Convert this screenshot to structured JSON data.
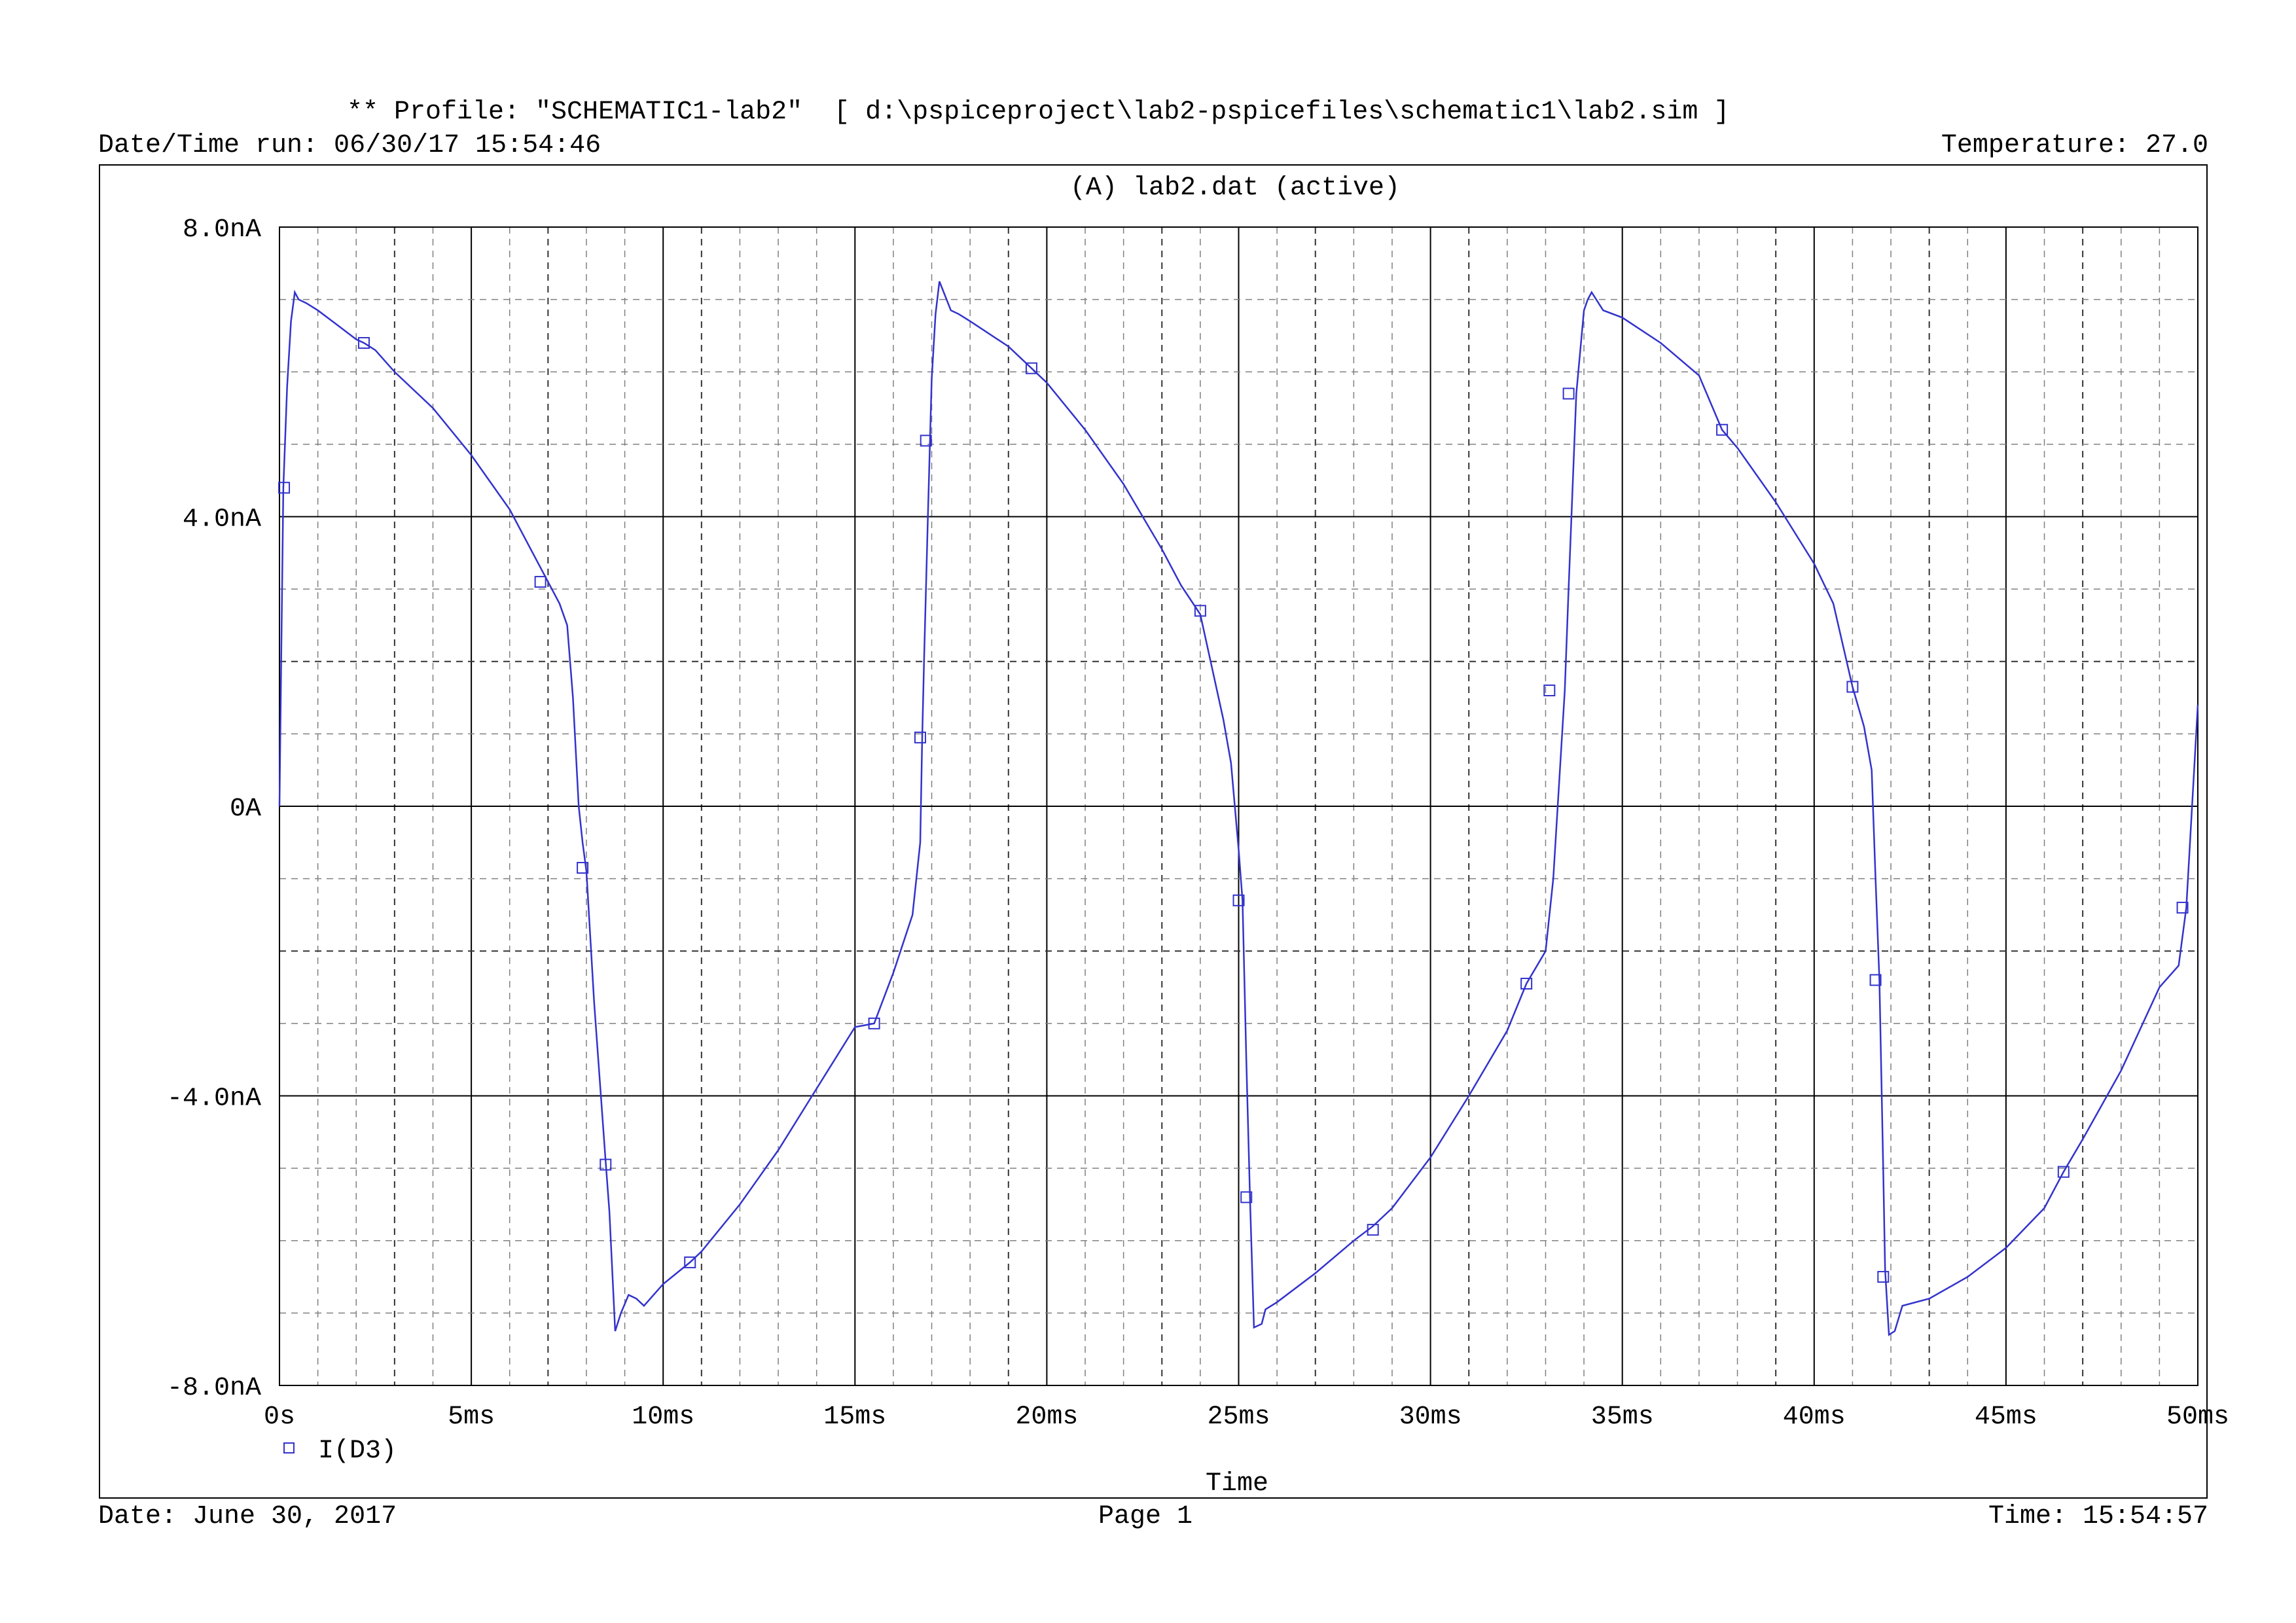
{
  "header": {
    "profile_line": "** Profile: \"SCHEMATIC1-lab2\"  [ d:\\pspiceproject\\lab2-pspicefiles\\schematic1\\lab2.sim ]",
    "datetime_run": "Date/Time run: 06/30/17 15:54:46",
    "temperature": "Temperature: 27.0"
  },
  "footer": {
    "date": "Date: June 30, 2017",
    "page": "Page 1",
    "time": "Time: 15:54:57"
  },
  "colors": {
    "trace": "#3333cc",
    "grid": "#808080",
    "frame": "#000000"
  },
  "chart_data": {
    "type": "line",
    "title": "(A) lab2.dat (active)",
    "xlabel": "Time",
    "ylabel": "",
    "xlim": [
      0,
      50
    ],
    "ylim": [
      -8,
      8
    ],
    "x_unit": "ms",
    "y_unit": "nA",
    "grid": true,
    "legend_position": "bottom-left",
    "x_ticks": [
      {
        "value": 0,
        "label": "0s"
      },
      {
        "value": 5,
        "label": "5ms"
      },
      {
        "value": 10,
        "label": "10ms"
      },
      {
        "value": 15,
        "label": "15ms"
      },
      {
        "value": 20,
        "label": "20ms"
      },
      {
        "value": 25,
        "label": "25ms"
      },
      {
        "value": 30,
        "label": "30ms"
      },
      {
        "value": 35,
        "label": "35ms"
      },
      {
        "value": 40,
        "label": "40ms"
      },
      {
        "value": 45,
        "label": "45ms"
      },
      {
        "value": 50,
        "label": "50ms"
      }
    ],
    "y_ticks": [
      {
        "value": 8,
        "label": "8.0nA"
      },
      {
        "value": 4,
        "label": "4.0nA"
      },
      {
        "value": 0,
        "label": "0A"
      },
      {
        "value": -4,
        "label": "-4.0nA"
      },
      {
        "value": -8,
        "label": "-8.0nA"
      }
    ],
    "series": [
      {
        "name": "I(D3)",
        "color": "#3333cc",
        "marker": "square",
        "x": [
          0,
          0.05,
          0.1,
          0.2,
          0.3,
          0.4,
          0.5,
          0.7,
          1.0,
          1.5,
          2.0,
          2.2,
          2.5,
          3.0,
          4.0,
          5.0,
          6.0,
          6.8,
          7.0,
          7.3,
          7.5,
          7.65,
          7.8,
          7.9,
          8.0,
          8.2,
          8.5,
          8.6,
          8.75,
          8.9,
          9.1,
          9.3,
          9.5,
          10.0,
          10.7,
          11.0,
          12.0,
          13.0,
          14.0,
          15.0,
          15.5,
          16.0,
          16.5,
          16.7,
          16.75,
          16.8,
          16.9,
          17.0,
          17.1,
          17.2,
          17.5,
          17.7,
          18.0,
          19.0,
          19.6,
          20.0,
          21.0,
          22.0,
          23.0,
          23.5,
          24.0,
          24.6,
          24.8,
          25.0,
          25.1,
          25.2,
          25.3,
          25.4,
          25.6,
          25.7,
          26.0,
          27.0,
          28.0,
          28.5,
          29.0,
          30.0,
          31.0,
          32.0,
          32.5,
          33.0,
          33.2,
          33.5,
          33.6,
          33.8,
          34.0,
          34.1,
          34.2,
          34.5,
          35.0,
          36.0,
          37.0,
          37.6,
          38.0,
          39.0,
          40.0,
          40.5,
          41.0,
          41.3,
          41.5,
          41.6,
          41.7,
          41.8,
          41.85,
          41.95,
          42.1,
          42.3,
          43.0,
          44.0,
          45.0,
          46.0,
          46.5,
          47.0,
          48.0,
          49.0,
          49.5,
          49.7,
          50.0
        ],
        "y": [
          0.0,
          2.2,
          4.4,
          5.8,
          6.7,
          7.1,
          7.0,
          6.95,
          6.85,
          6.65,
          6.45,
          6.4,
          6.3,
          6.0,
          5.5,
          4.85,
          4.1,
          3.3,
          3.1,
          2.8,
          2.5,
          1.5,
          0.0,
          -0.5,
          -0.9,
          -2.7,
          -4.9,
          -5.6,
          -7.25,
          -7.0,
          -6.75,
          -6.8,
          -6.9,
          -6.6,
          -6.3,
          -6.15,
          -5.5,
          -4.75,
          -3.9,
          -3.05,
          -3.0,
          -2.3,
          -1.5,
          -0.5,
          0.9,
          2.0,
          4.0,
          5.9,
          6.8,
          7.25,
          6.85,
          6.8,
          6.7,
          6.35,
          6.05,
          5.85,
          5.2,
          4.45,
          3.55,
          3.05,
          2.65,
          1.2,
          0.6,
          -0.6,
          -1.3,
          -3.5,
          -5.5,
          -7.2,
          -7.15,
          -6.95,
          -6.85,
          -6.45,
          -6.0,
          -5.8,
          -5.55,
          -4.85,
          -4.0,
          -3.1,
          -2.45,
          -2.0,
          -1.0,
          1.6,
          3.0,
          5.7,
          6.85,
          7.0,
          7.1,
          6.85,
          6.75,
          6.4,
          5.95,
          5.2,
          4.95,
          4.2,
          3.35,
          2.8,
          1.65,
          1.1,
          0.5,
          -1.0,
          -2.4,
          -5.0,
          -6.4,
          -7.3,
          -7.25,
          -6.9,
          -6.8,
          -6.5,
          -6.1,
          -5.55,
          -5.05,
          -4.6,
          -3.65,
          -2.5,
          -2.2,
          -1.4,
          1.4
        ],
        "marker_points": [
          [
            0.12,
            4.4
          ],
          [
            2.2,
            6.4
          ],
          [
            6.8,
            3.1
          ],
          [
            7.9,
            -0.85
          ],
          [
            8.5,
            -4.95
          ],
          [
            10.7,
            -6.3
          ],
          [
            15.5,
            -3.0
          ],
          [
            16.7,
            0.95
          ],
          [
            16.85,
            5.05
          ],
          [
            19.6,
            6.05
          ],
          [
            24.0,
            2.7
          ],
          [
            25.0,
            -1.3
          ],
          [
            25.2,
            -5.4
          ],
          [
            28.5,
            -5.85
          ],
          [
            32.5,
            -2.45
          ],
          [
            33.1,
            1.6
          ],
          [
            33.6,
            5.7
          ],
          [
            37.6,
            5.2
          ],
          [
            41.0,
            1.65
          ],
          [
            41.6,
            -2.4
          ],
          [
            41.8,
            -6.5
          ],
          [
            46.5,
            -5.05
          ],
          [
            49.6,
            -1.4
          ]
        ]
      }
    ]
  }
}
